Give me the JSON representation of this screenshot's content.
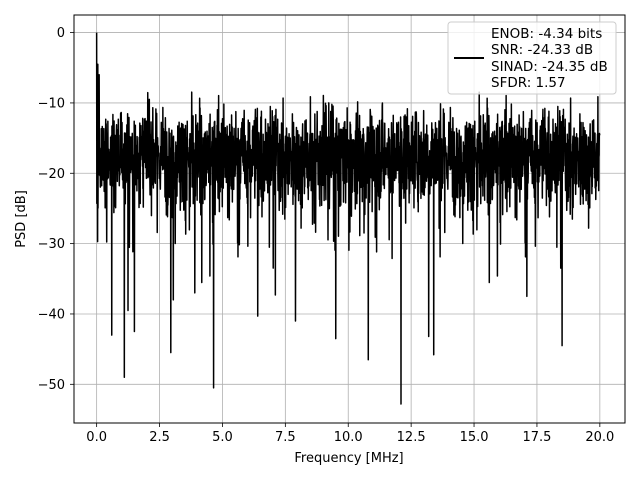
{
  "chart_data": {
    "type": "line",
    "title": "",
    "xlabel": "Frequency [MHz]",
    "ylabel": "PSD [dB]",
    "xlim": [
      -0.9,
      21.0
    ],
    "ylim": [
      -55.5,
      2.5
    ],
    "xticks": [
      0.0,
      2.5,
      5.0,
      7.5,
      10.0,
      12.5,
      15.0,
      17.5,
      20.0
    ],
    "xtick_labels": [
      "0.0",
      "2.5",
      "5.0",
      "7.5",
      "10.0",
      "12.5",
      "15.0",
      "17.5",
      "20.0"
    ],
    "yticks": [
      0,
      -10,
      -20,
      -30,
      -40,
      -50
    ],
    "ytick_labels": [
      "0",
      "−10",
      "−20",
      "−30",
      "−40",
      "−50"
    ],
    "grid": true,
    "legend_placement": "top-right",
    "series": [
      {
        "color": "#000000",
        "description": "dense noise-like spectrum: values fluctuate roughly between -28 and -7 dB across 0–20 MHz",
        "peaks": [
          {
            "x": 0.0,
            "y": 0.0
          },
          {
            "x": 0.05,
            "y": -4.5
          },
          {
            "x": 0.1,
            "y": -6.0
          }
        ],
        "dips": [
          {
            "x": 0.6,
            "y": -43.0
          },
          {
            "x": 1.1,
            "y": -49.0
          },
          {
            "x": 1.25,
            "y": -39.5
          },
          {
            "x": 1.5,
            "y": -42.5
          },
          {
            "x": 2.95,
            "y": -45.5
          },
          {
            "x": 3.05,
            "y": -38.0
          },
          {
            "x": 3.9,
            "y": -37.0
          },
          {
            "x": 4.65,
            "y": -50.5
          },
          {
            "x": 6.4,
            "y": -40.3
          },
          {
            "x": 7.9,
            "y": -41.0
          },
          {
            "x": 9.5,
            "y": -43.5
          },
          {
            "x": 10.8,
            "y": -46.5
          },
          {
            "x": 12.1,
            "y": -52.8
          },
          {
            "x": 13.2,
            "y": -43.2
          },
          {
            "x": 13.4,
            "y": -45.8
          },
          {
            "x": 7.1,
            "y": -37.3
          },
          {
            "x": 17.1,
            "y": -37.5
          },
          {
            "x": 18.5,
            "y": -44.5
          }
        ]
      }
    ],
    "legend": {
      "line_color": "#000000",
      "entries": [
        "ENOB: -4.34 bits",
        "SNR: -24.33 dB",
        "SINAD: -24.35 dB",
        "SFDR: 1.57"
      ]
    }
  }
}
